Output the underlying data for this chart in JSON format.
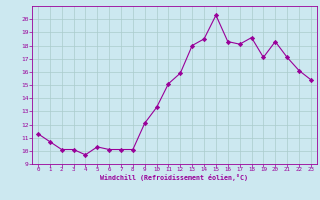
{
  "x": [
    0,
    1,
    2,
    3,
    4,
    5,
    6,
    7,
    8,
    9,
    10,
    11,
    12,
    13,
    14,
    15,
    16,
    17,
    18,
    19,
    20,
    21,
    22,
    23
  ],
  "y": [
    11.3,
    10.7,
    10.1,
    10.1,
    9.7,
    10.3,
    10.1,
    10.1,
    10.1,
    12.1,
    13.3,
    15.1,
    15.9,
    18.0,
    18.5,
    20.3,
    18.3,
    18.1,
    18.6,
    17.1,
    18.3,
    17.1,
    16.1,
    15.4
  ],
  "line_color": "#990099",
  "marker": "D",
  "marker_color": "#990099",
  "bg_color": "#cce8f0",
  "grid_color": "#aacccc",
  "xlabel": "Windchill (Refroidissement éolien,°C)",
  "xlabel_color": "#990099",
  "tick_color": "#990099",
  "ylim": [
    9,
    21
  ],
  "xlim": [
    -0.5,
    23.5
  ],
  "yticks": [
    9,
    10,
    11,
    12,
    13,
    14,
    15,
    16,
    17,
    18,
    19,
    20
  ],
  "xticks": [
    0,
    1,
    2,
    3,
    4,
    5,
    6,
    7,
    8,
    9,
    10,
    11,
    12,
    13,
    14,
    15,
    16,
    17,
    18,
    19,
    20,
    21,
    22,
    23
  ]
}
